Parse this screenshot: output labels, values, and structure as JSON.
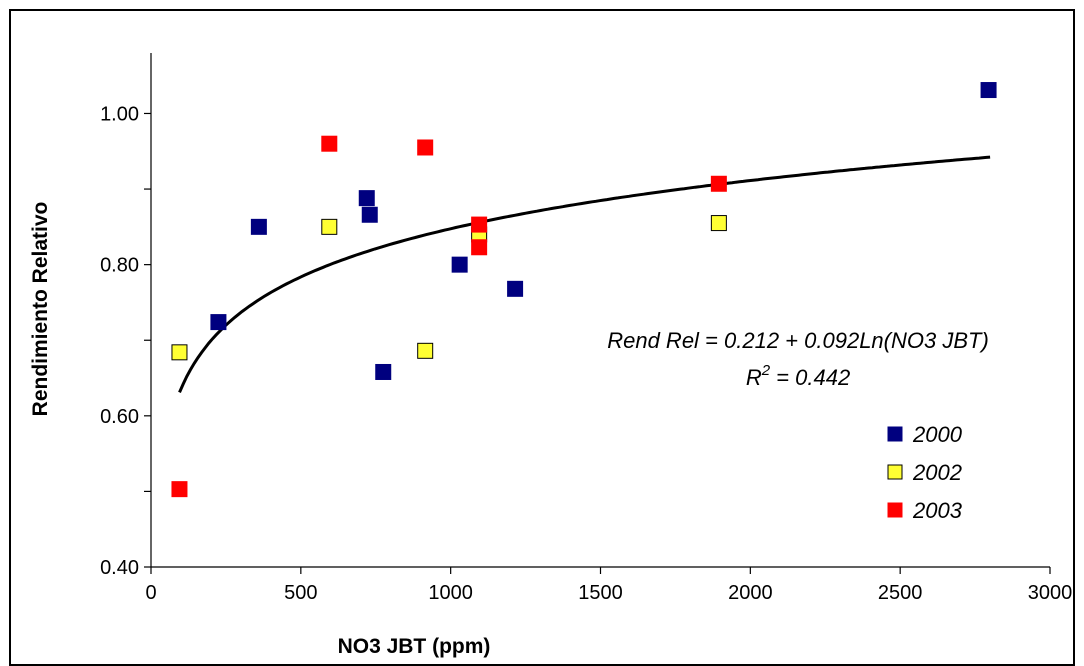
{
  "chart_data": {
    "type": "scatter",
    "title": "",
    "xlabel": "NO3 JBT (ppm)",
    "ylabel": "Rendimiento Relativo",
    "xlim": [
      0,
      3000
    ],
    "ylim": [
      0.4,
      1.08
    ],
    "x_ticks": [
      0,
      500,
      1000,
      1500,
      2000,
      2500,
      3000
    ],
    "x_tick_labels": [
      "0",
      "500",
      "1000",
      "1500",
      "2000",
      "2500",
      "3000"
    ],
    "y_ticks": [
      0.4,
      0.5,
      0.6,
      0.7,
      0.8,
      0.9,
      1.0
    ],
    "y_tick_labels": [
      "0.40",
      "",
      "0.60",
      "",
      "0.80",
      "",
      "1.00"
    ],
    "grid": false,
    "legend_position": "right",
    "series": [
      {
        "name": "2000",
        "color": "#00007f",
        "points": [
          {
            "x": 225,
            "y": 0.724
          },
          {
            "x": 360,
            "y": 0.85
          },
          {
            "x": 720,
            "y": 0.888
          },
          {
            "x": 730,
            "y": 0.866
          },
          {
            "x": 775,
            "y": 0.658
          },
          {
            "x": 1030,
            "y": 0.8
          },
          {
            "x": 1215,
            "y": 0.768
          },
          {
            "x": 2795,
            "y": 1.031
          }
        ]
      },
      {
        "name": "2002",
        "color": "#ffff33",
        "points": [
          {
            "x": 95,
            "y": 0.684
          },
          {
            "x": 595,
            "y": 0.85
          },
          {
            "x": 915,
            "y": 0.686
          },
          {
            "x": 1095,
            "y": 0.84
          },
          {
            "x": 1895,
            "y": 0.855
          }
        ]
      },
      {
        "name": "2003",
        "color": "#ff0000",
        "points": [
          {
            "x": 95,
            "y": 0.503
          },
          {
            "x": 595,
            "y": 0.96
          },
          {
            "x": 915,
            "y": 0.955
          },
          {
            "x": 1095,
            "y": 0.853
          },
          {
            "x": 1095,
            "y": 0.823
          },
          {
            "x": 1895,
            "y": 0.907
          }
        ]
      }
    ],
    "trendline": {
      "type": "logarithmic",
      "intercept": 0.212,
      "slope": 0.092,
      "x_range": [
        95,
        2800
      ]
    },
    "annotations": {
      "equation": "Rend Rel = 0.212 + 0.092Ln(NO3 JBT)",
      "r2_label": "R",
      "r2_exponent": "2",
      "r2_value": " = 0.442"
    }
  }
}
